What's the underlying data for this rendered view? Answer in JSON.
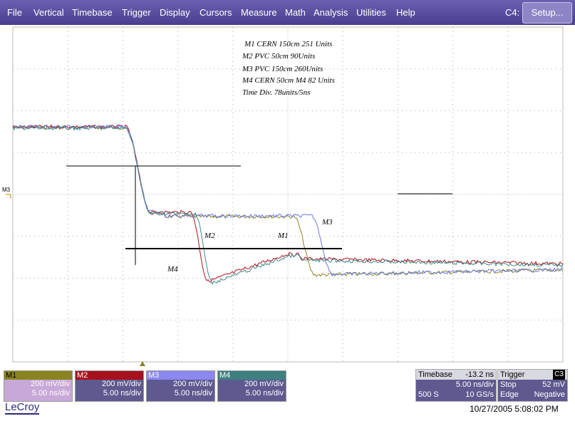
{
  "menu": {
    "items": [
      "File",
      "Vertical",
      "Timebase",
      "Trigger",
      "Display",
      "Cursors",
      "Measure",
      "Math",
      "Analysis",
      "Utilities",
      "Help"
    ],
    "channel": "C4:",
    "setup": "Setup..."
  },
  "screen": {
    "annotations": [
      "M1  CERN 150cm  251 Units",
      "M2 PVC 50cm  90Units",
      "M3 PVC 150cm  260Units",
      "M4 CERN 50cm  M4 82 Units",
      "Time Div. 78units/5ns"
    ],
    "trace_labels": [
      "M2",
      "M1",
      "M3",
      "M4"
    ],
    "level_marker": "M3"
  },
  "channels": [
    {
      "name": "M1",
      "vdiv": "200 mV/div",
      "tdiv": "5.00 ns/div"
    },
    {
      "name": "M2",
      "vdiv": "200 mV/div",
      "tdiv": "5.00 ns/div"
    },
    {
      "name": "M3",
      "vdiv": "200 mV/div",
      "tdiv": "5.00 ns/div"
    },
    {
      "name": "M4",
      "vdiv": "200 mV/div",
      "tdiv": "5.00 ns/div"
    }
  ],
  "timebase": {
    "title": "Timebase",
    "delay": "-13.2 ns",
    "tdiv": "5.00 ns/div",
    "samples": "500 S",
    "rate": "10 GS/s"
  },
  "trigger": {
    "title": "Trigger",
    "source": "C3",
    "mode": "Stop",
    "level": "52 mV",
    "type": "Edge",
    "slope": "Negative"
  },
  "footer": {
    "brand": "LeCroy",
    "timestamp": "10/27/2005 5:08:02 PM"
  }
}
